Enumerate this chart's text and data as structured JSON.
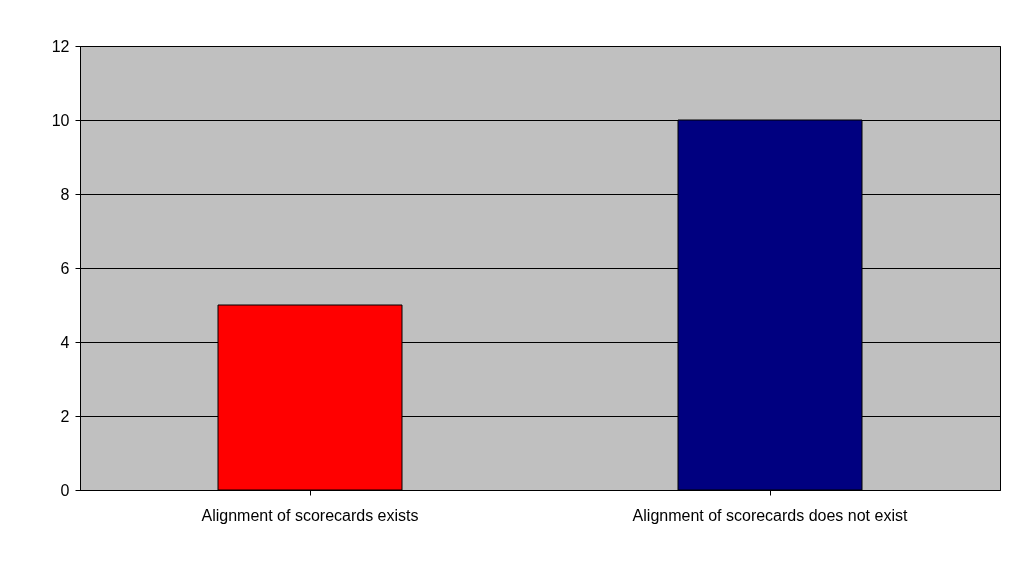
{
  "chart_data": {
    "type": "bar",
    "categories": [
      "Alignment of scorecards exists",
      "Alignment of scorecards does not exist"
    ],
    "values": [
      5,
      10
    ],
    "colors": [
      "#ff0000",
      "#000080"
    ],
    "ylim": [
      0,
      12
    ],
    "yticks": [
      0,
      2,
      4,
      6,
      8,
      10,
      12
    ],
    "grid": "y",
    "legend": false
  }
}
